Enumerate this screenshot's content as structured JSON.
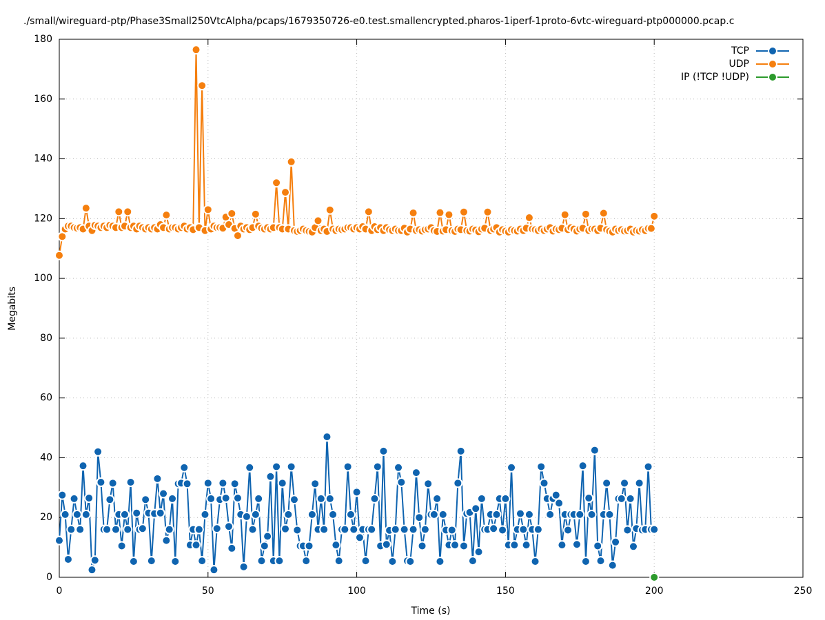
{
  "chart_data": {
    "type": "line",
    "title": "./small/wireguard-ptp/Phase3Small250VtcAlpha/pcaps/1679350726-e0.test.smallencrypted.pharos-1iperf-1proto-6vtc-wireguard-ptp000000.pcap.c",
    "x_label": "Time (s)",
    "y_label": "Megabits",
    "xlim": [
      0,
      250
    ],
    "xticks": [
      0,
      50,
      100,
      150,
      200,
      250
    ],
    "ylim": [
      0,
      180
    ],
    "yticks": [
      0,
      20,
      40,
      60,
      80,
      100,
      120,
      140,
      160,
      180
    ],
    "grid": true,
    "legend": "top-right",
    "x": [
      0,
      1,
      2,
      3,
      4,
      5,
      6,
      7,
      8,
      9,
      10,
      11,
      12,
      13,
      14,
      15,
      16,
      17,
      18,
      19,
      20,
      21,
      22,
      23,
      24,
      25,
      26,
      27,
      28,
      29,
      30,
      31,
      32,
      33,
      34,
      35,
      36,
      37,
      38,
      39,
      40,
      41,
      42,
      43,
      44,
      45,
      46,
      47,
      48,
      49,
      50,
      51,
      52,
      53,
      54,
      55,
      56,
      57,
      58,
      59,
      60,
      61,
      62,
      63,
      64,
      65,
      66,
      67,
      68,
      69,
      70,
      71,
      72,
      73,
      74,
      75,
      76,
      77,
      78,
      79,
      80,
      81,
      82,
      83,
      84,
      85,
      86,
      87,
      88,
      89,
      90,
      91,
      92,
      93,
      94,
      95,
      96,
      97,
      98,
      99,
      100,
      101,
      102,
      103,
      104,
      105,
      106,
      107,
      108,
      109,
      110,
      111,
      112,
      113,
      114,
      115,
      116,
      117,
      118,
      119,
      120,
      121,
      122,
      123,
      124,
      125,
      126,
      127,
      128,
      129,
      130,
      131,
      132,
      133,
      134,
      135,
      136,
      137,
      138,
      139,
      140,
      141,
      142,
      143,
      144,
      145,
      146,
      147,
      148,
      149,
      150,
      151,
      152,
      153,
      154,
      155,
      156,
      157,
      158,
      159,
      160,
      161,
      162,
      163,
      164,
      165,
      166,
      167,
      168,
      169,
      170,
      171,
      172,
      173,
      174,
      175,
      176,
      177,
      178,
      179,
      180,
      181,
      182,
      183,
      184,
      185,
      186,
      187,
      188,
      189,
      190,
      191,
      192,
      193,
      194,
      195,
      196,
      197,
      198,
      199,
      200
    ],
    "series": [
      {
        "name": "TCP",
        "color": "#0f64b0",
        "values": [
          12.3,
          27.5,
          21,
          6,
          16,
          26.3,
          21,
          16,
          37.3,
          21,
          26.5,
          2.5,
          5.7,
          42,
          31.8,
          16,
          16,
          26,
          31.5,
          16,
          21,
          10.5,
          21,
          16,
          31.8,
          5.3,
          21.5,
          16,
          16.3,
          26,
          21.5,
          5.5,
          21.3,
          33,
          21.5,
          28,
          12.3,
          16,
          26.3,
          5.3,
          31.3,
          31.5,
          36.7,
          31.3,
          10.8,
          16,
          10.8,
          16,
          5.5,
          21,
          31.5,
          26.3,
          2.5,
          16.3,
          26,
          31.5,
          26.5,
          17,
          9.7,
          31.3,
          26.5,
          21,
          3.5,
          20.3,
          36.7,
          16,
          21,
          26.3,
          5.5,
          10.5,
          13.7,
          33.7,
          5.5,
          37,
          5.5,
          31.5,
          16.2,
          21,
          37,
          26,
          15.8,
          10.5,
          10.5,
          5.5,
          10.5,
          21,
          31.3,
          16,
          26.3,
          16,
          47,
          26.3,
          21,
          10.8,
          5.5,
          16,
          16,
          37,
          21,
          16,
          28.5,
          13.3,
          16,
          5.5,
          16,
          16,
          26.3,
          37,
          10.5,
          42.2,
          11,
          15.7,
          5.3,
          16,
          36.7,
          31.8,
          16,
          5.5,
          5.3,
          16,
          35,
          20,
          10.5,
          16,
          31.3,
          21,
          21,
          26.3,
          5.3,
          21,
          15.8,
          10.8,
          15.8,
          10.8,
          31.5,
          42.2,
          10.5,
          21.3,
          21.7,
          5.5,
          23,
          8.5,
          26.3,
          16,
          16,
          21,
          16.3,
          21,
          26.3,
          15.8,
          26.3,
          10.8,
          36.7,
          10.8,
          16,
          21.3,
          16,
          10.8,
          21,
          16,
          5.3,
          16,
          37,
          31.5,
          26.3,
          21,
          26.3,
          27.5,
          24.8,
          10.8,
          21,
          15.8,
          21,
          21,
          11,
          21,
          37.3,
          5.3,
          26.5,
          21,
          42.5,
          10.5,
          5.5,
          21,
          31.5,
          21,
          4,
          11.8,
          26.3,
          26.3,
          31.5,
          15.8,
          26.3,
          10.3,
          16.3,
          31.5,
          15.8,
          16,
          37,
          16,
          16
        ]
      },
      {
        "name": "UDP",
        "color": "#f57f0e",
        "values": [
          107.7,
          114,
          116.5,
          117.5,
          117.5,
          117,
          116.8,
          117,
          116.5,
          123.5,
          117.5,
          116,
          117.8,
          117.5,
          117,
          117.5,
          117,
          117.8,
          117.5,
          117,
          122.3,
          117,
          117.5,
          122.3,
          117,
          117.5,
          116.5,
          117.5,
          117,
          116.5,
          117,
          116.5,
          117,
          116.5,
          118,
          117,
          121.2,
          116.5,
          117,
          117,
          116.5,
          117,
          117.5,
          116.5,
          117,
          116.3,
          176.5,
          117,
          164.5,
          116,
          123,
          116.5,
          117.5,
          117,
          117,
          116.8,
          120.5,
          118,
          121.7,
          116.7,
          114.3,
          117.5,
          116.5,
          117,
          116.3,
          117,
          121.5,
          117.5,
          116.8,
          116.5,
          117,
          116.5,
          117,
          132,
          117,
          116.5,
          128.8,
          116.5,
          139,
          116,
          115.7,
          116,
          116.5,
          116,
          115.7,
          115.5,
          117,
          119.3,
          116,
          116.5,
          115.7,
          122.9,
          116.5,
          116,
          116.5,
          116.3,
          116.5,
          117,
          117,
          116.5,
          117,
          116.5,
          117.3,
          116.5,
          122.3,
          116,
          117.3,
          116.3,
          117,
          116,
          117,
          116.3,
          116,
          116.5,
          116,
          116,
          116.8,
          115.5,
          116.5,
          121.9,
          116,
          116.3,
          115.8,
          116.3,
          116.5,
          117,
          116,
          115.7,
          122,
          115.8,
          116.3,
          121.3,
          116,
          115.7,
          116.5,
          116.3,
          122.2,
          116,
          115.8,
          116.5,
          116.2,
          115.6,
          116.5,
          116.8,
          122.2,
          116,
          116.5,
          117,
          115.5,
          116.3,
          115.8,
          115.5,
          116.3,
          116,
          115.8,
          116.5,
          116,
          116.8,
          120.3,
          116.5,
          116.3,
          116,
          116.5,
          116,
          116.5,
          117,
          115.8,
          116.5,
          116.3,
          116.8,
          121.3,
          116.3,
          117,
          116.5,
          115.8,
          116.5,
          116.8,
          121.5,
          116,
          116.5,
          116.5,
          116,
          116.8,
          121.8,
          116.3,
          115.8,
          115.5,
          116.5,
          116,
          116.3,
          115.8,
          116,
          116.5,
          115.5,
          116,
          115.8,
          116.3,
          116,
          116.7,
          116.7,
          120.8
        ]
      },
      {
        "name": "IP (!TCP  !UDP)",
        "color": "#2b9a2b",
        "x": [
          200
        ],
        "values": [
          0
        ]
      }
    ]
  }
}
